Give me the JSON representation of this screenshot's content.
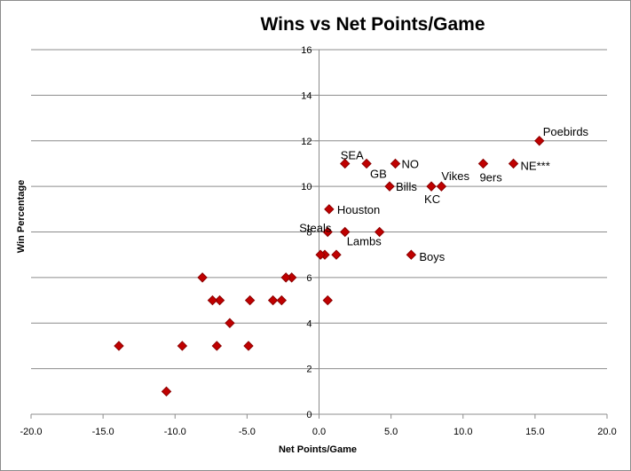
{
  "chart_data": {
    "type": "scatter",
    "title": "Wins vs Net Points/Game",
    "xlabel": "Net Points/Game",
    "ylabel": "Win Percentage",
    "xlim": [
      -20,
      20
    ],
    "ylim": [
      0,
      16
    ],
    "xticks": [
      "-20.0",
      "-15.0",
      "-10.0",
      "-5.0",
      "0.0",
      "5.0",
      "10.0",
      "15.0",
      "20.0"
    ],
    "yticks": [
      "0",
      "2",
      "4",
      "6",
      "8",
      "10",
      "12",
      "14",
      "16"
    ],
    "grid": "horizontal",
    "legend": "none",
    "marker_color": "#c00000",
    "marker_edge_color": "#8b0000",
    "points": [
      {
        "x": 15.3,
        "y": 12,
        "label": "Poebirds"
      },
      {
        "x": 13.5,
        "y": 11,
        "label": "NE***"
      },
      {
        "x": 11.4,
        "y": 11,
        "label": "9ers"
      },
      {
        "x": 8.5,
        "y": 10,
        "label": "Vikes"
      },
      {
        "x": 7.8,
        "y": 10,
        "label": "KC"
      },
      {
        "x": 5.3,
        "y": 11,
        "label": "NO"
      },
      {
        "x": 4.9,
        "y": 10,
        "label": "Bills"
      },
      {
        "x": 3.3,
        "y": 11,
        "label": "GB"
      },
      {
        "x": 1.8,
        "y": 11,
        "label": "SEA"
      },
      {
        "x": 0.7,
        "y": 9,
        "label": "Houston"
      },
      {
        "x": 0.6,
        "y": 8,
        "label": "Steals"
      },
      {
        "x": 1.8,
        "y": 8,
        "label": "Lambs"
      },
      {
        "x": 6.4,
        "y": 7,
        "label": "Boys"
      },
      {
        "x": 4.2,
        "y": 8,
        "label": ""
      },
      {
        "x": 1.2,
        "y": 7,
        "label": ""
      },
      {
        "x": 0.4,
        "y": 7,
        "label": ""
      },
      {
        "x": 0.1,
        "y": 7,
        "label": ""
      },
      {
        "x": 0.6,
        "y": 5,
        "label": ""
      },
      {
        "x": -1.9,
        "y": 6,
        "label": ""
      },
      {
        "x": -2.3,
        "y": 6,
        "label": ""
      },
      {
        "x": -2.6,
        "y": 5,
        "label": ""
      },
      {
        "x": -3.2,
        "y": 5,
        "label": ""
      },
      {
        "x": -4.8,
        "y": 5,
        "label": ""
      },
      {
        "x": -4.9,
        "y": 3,
        "label": ""
      },
      {
        "x": -6.2,
        "y": 4,
        "label": ""
      },
      {
        "x": -6.9,
        "y": 5,
        "label": ""
      },
      {
        "x": -7.1,
        "y": 3,
        "label": ""
      },
      {
        "x": -7.4,
        "y": 5,
        "label": ""
      },
      {
        "x": -8.1,
        "y": 6,
        "label": ""
      },
      {
        "x": -9.5,
        "y": 3,
        "label": ""
      },
      {
        "x": -10.6,
        "y": 1,
        "label": ""
      },
      {
        "x": -13.9,
        "y": 3,
        "label": ""
      }
    ]
  }
}
